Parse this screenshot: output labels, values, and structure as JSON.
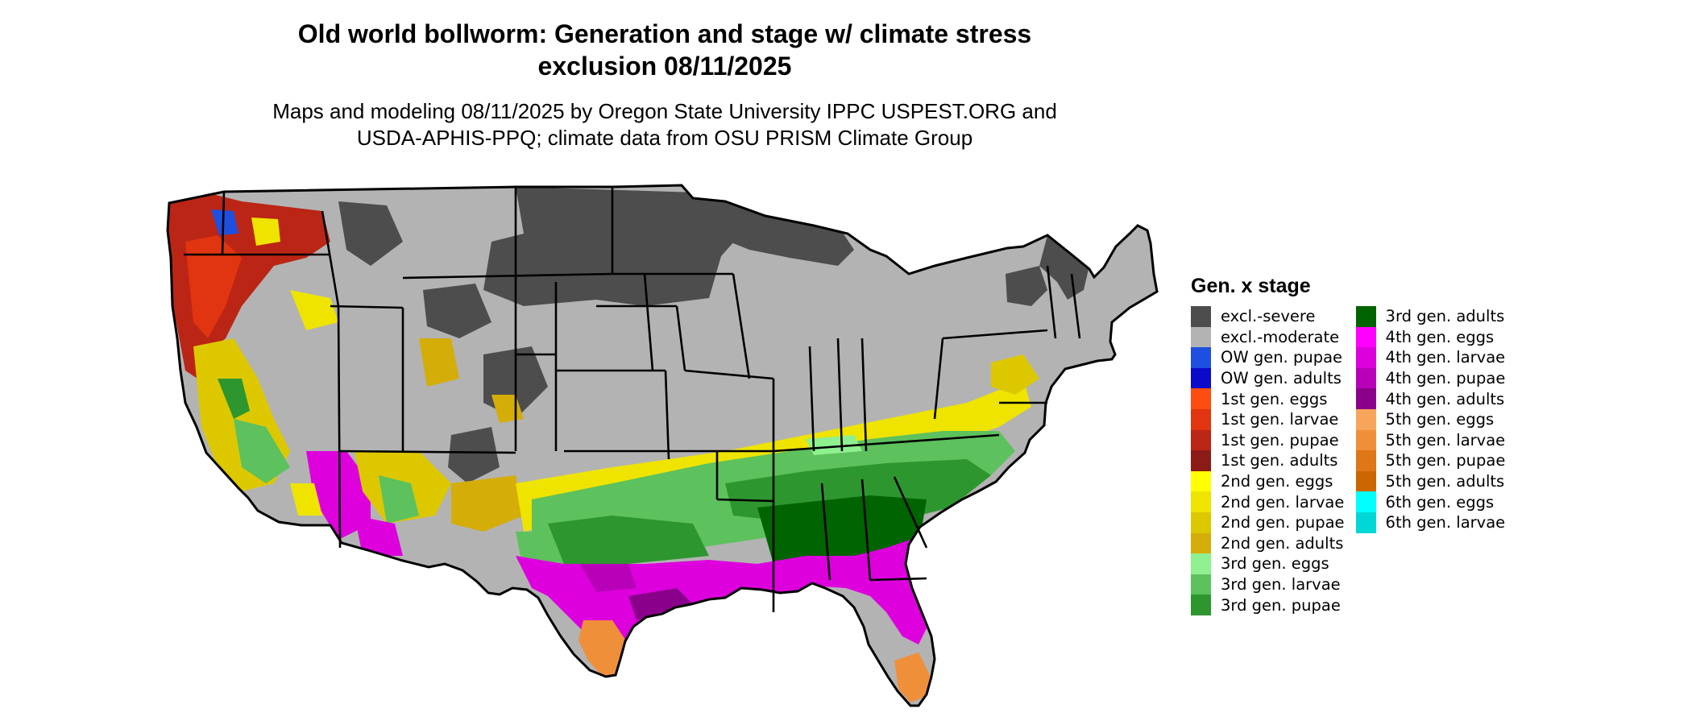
{
  "title_line1": "Old world bollworm: Generation and stage w/ climate stress",
  "title_line2": "exclusion 08/11/2025",
  "subtitle_line1": "Maps and modeling 08/11/2025 by Oregon State University IPPC USPEST.ORG and",
  "subtitle_line2": "USDA-APHIS-PPQ; climate data from OSU PRISM Climate Group",
  "legend": {
    "title": "Gen. x stage",
    "col1": [
      {
        "label": "excl.-severe",
        "color": "#4d4d4d"
      },
      {
        "label": "excl.-moderate",
        "color": "#b3b3b3"
      },
      {
        "label": "OW gen. pupae",
        "color": "#1f4fe0"
      },
      {
        "label": "OW gen. adults",
        "color": "#0a0ac8"
      },
      {
        "label": "1st gen. eggs",
        "color": "#ff4c10"
      },
      {
        "label": "1st gen. larvae",
        "color": "#e03510"
      },
      {
        "label": "1st gen. pupae",
        "color": "#bb2515"
      },
      {
        "label": "1st gen. adults",
        "color": "#8c1a16"
      },
      {
        "label": "2nd gen. eggs",
        "color": "#ffff00"
      },
      {
        "label": "2nd gen. larvae",
        "color": "#eee400"
      },
      {
        "label": "2nd gen. pupae",
        "color": "#ddc800"
      },
      {
        "label": "2nd gen. adults",
        "color": "#d4ad08"
      },
      {
        "label": "3rd gen. eggs",
        "color": "#8ef08e"
      },
      {
        "label": "3rd gen. larvae",
        "color": "#5dc15d"
      },
      {
        "label": "3rd gen. pupae",
        "color": "#2e962e"
      }
    ],
    "col2": [
      {
        "label": "3rd gen. adults",
        "color": "#006400"
      },
      {
        "label": "4th gen. eggs",
        "color": "#ff00ff"
      },
      {
        "label": "4th gen. larvae",
        "color": "#dd00dd"
      },
      {
        "label": "4th gen. pupae",
        "color": "#b800b8"
      },
      {
        "label": "4th gen. adults",
        "color": "#8a008a"
      },
      {
        "label": "5th gen. eggs",
        "color": "#f7a55a"
      },
      {
        "label": "5th gen. larvae",
        "color": "#ef8f3a"
      },
      {
        "label": "5th gen. pupae",
        "color": "#df7618"
      },
      {
        "label": "5th gen. adults",
        "color": "#cc6600"
      },
      {
        "label": "6th gen. eggs",
        "color": "#00ffff"
      },
      {
        "label": "6th gen. larvae",
        "color": "#00d8d8"
      }
    ]
  }
}
